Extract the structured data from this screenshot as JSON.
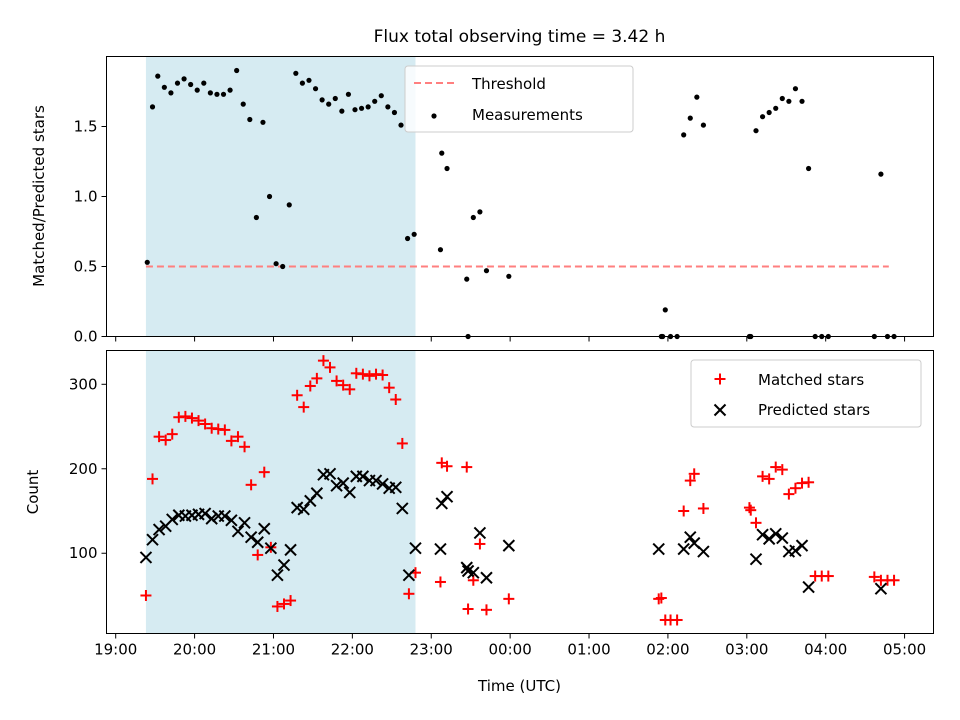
{
  "figure": {
    "title": "Flux total observing time = 3.42 h"
  },
  "colors": {
    "highlight": "#add8e6",
    "threshold": "#ff7f7f",
    "measurements": "#000000",
    "matched": "#ff0000",
    "predicted": "#000000"
  },
  "chart_data": [
    {
      "type": "scatter",
      "title": "Flux total observing time = 3.42 h",
      "xlabel": "",
      "ylabel": "Matched/Predicted stars",
      "x_ticks": [
        "19:00",
        "20:00",
        "21:00",
        "22:00",
        "23:00",
        "00:00",
        "01:00",
        "02:00",
        "03:00",
        "04:00",
        "05:00"
      ],
      "x_tick_labels_visible": false,
      "xlim": [
        "18:53",
        "05:22"
      ],
      "ylim": [
        0,
        2.0
      ],
      "y_ticks": [
        0.0,
        0.5,
        1.0,
        1.5
      ],
      "y_tick_labels": [
        "0.0",
        "0.5",
        "1.0",
        "1.5"
      ],
      "highlight_span": [
        "19:23",
        "22:48"
      ],
      "legend_position": "top-center",
      "legend": [
        "Threshold",
        "Measurements"
      ],
      "threshold": {
        "name": "Threshold",
        "y": 0.5,
        "x_range": [
          "19:23",
          "04:48"
        ],
        "style": "dashed"
      },
      "series": [
        {
          "name": "Measurements",
          "marker": "dot",
          "points": [
            [
              "19:24",
              0.53
            ],
            [
              "19:28",
              1.64
            ],
            [
              "19:32",
              1.86
            ],
            [
              "19:37",
              1.78
            ],
            [
              "19:42",
              1.74
            ],
            [
              "19:47",
              1.81
            ],
            [
              "19:52",
              1.84
            ],
            [
              "19:57",
              1.8
            ],
            [
              "20:02",
              1.76
            ],
            [
              "20:07",
              1.81
            ],
            [
              "20:12",
              1.74
            ],
            [
              "20:17",
              1.73
            ],
            [
              "20:22",
              1.73
            ],
            [
              "20:27",
              1.76
            ],
            [
              "20:32",
              1.9
            ],
            [
              "20:37",
              1.66
            ],
            [
              "20:42",
              1.55
            ],
            [
              "20:47",
              0.85
            ],
            [
              "20:52",
              1.53
            ],
            [
              "20:57",
              1.0
            ],
            [
              "21:02",
              0.52
            ],
            [
              "21:07",
              0.5
            ],
            [
              "21:12",
              0.94
            ],
            [
              "21:17",
              1.88
            ],
            [
              "21:22",
              1.81
            ],
            [
              "21:27",
              1.83
            ],
            [
              "21:32",
              1.77
            ],
            [
              "21:37",
              1.69
            ],
            [
              "21:42",
              1.66
            ],
            [
              "21:47",
              1.7
            ],
            [
              "21:52",
              1.61
            ],
            [
              "21:57",
              1.73
            ],
            [
              "22:02",
              1.62
            ],
            [
              "22:07",
              1.63
            ],
            [
              "22:12",
              1.64
            ],
            [
              "22:17",
              1.68
            ],
            [
              "22:22",
              1.72
            ],
            [
              "22:27",
              1.64
            ],
            [
              "22:32",
              1.6
            ],
            [
              "22:37",
              1.51
            ],
            [
              "22:42",
              0.7
            ],
            [
              "22:47",
              0.73
            ],
            [
              "23:07",
              0.62
            ],
            [
              "23:08",
              1.31
            ],
            [
              "23:12",
              1.2
            ],
            [
              "23:27",
              0.41
            ],
            [
              "23:28",
              0.0
            ],
            [
              "23:32",
              0.85
            ],
            [
              "23:37",
              0.89
            ],
            [
              "23:42",
              0.47
            ],
            [
              "23:59",
              0.43
            ],
            [
              "01:55",
              0.0
            ],
            [
              "01:56",
              0.0
            ],
            [
              "01:58",
              0.19
            ],
            [
              "02:02",
              0.0
            ],
            [
              "02:07",
              0.0
            ],
            [
              "02:12",
              1.44
            ],
            [
              "02:17",
              1.56
            ],
            [
              "02:22",
              1.71
            ],
            [
              "02:27",
              1.51
            ],
            [
              "03:02",
              0.0
            ],
            [
              "03:03",
              0.0
            ],
            [
              "03:07",
              1.47
            ],
            [
              "03:12",
              1.57
            ],
            [
              "03:17",
              1.6
            ],
            [
              "03:22",
              1.63
            ],
            [
              "03:27",
              1.7
            ],
            [
              "03:32",
              1.68
            ],
            [
              "03:37",
              1.77
            ],
            [
              "03:42",
              1.68
            ],
            [
              "03:47",
              1.2
            ],
            [
              "03:52",
              0.0
            ],
            [
              "03:57",
              0.0
            ],
            [
              "04:02",
              0.0
            ],
            [
              "04:37",
              0.0
            ],
            [
              "04:42",
              1.16
            ],
            [
              "04:47",
              0.0
            ],
            [
              "04:52",
              0.0
            ]
          ]
        }
      ]
    },
    {
      "type": "scatter",
      "title": "",
      "xlabel": "Time (UTC)",
      "ylabel": "Count",
      "x_ticks": [
        "19:00",
        "20:00",
        "21:00",
        "22:00",
        "23:00",
        "00:00",
        "01:00",
        "02:00",
        "03:00",
        "04:00",
        "05:00"
      ],
      "x_tick_labels": [
        "19:00",
        "20:00",
        "21:00",
        "22:00",
        "23:00",
        "00:00",
        "01:00",
        "02:00",
        "03:00",
        "04:00",
        "05:00"
      ],
      "xlim": [
        "18:53",
        "05:22"
      ],
      "ylim": [
        5,
        340
      ],
      "y_ticks": [
        100,
        200,
        300
      ],
      "y_tick_labels": [
        "100",
        "200",
        "300"
      ],
      "highlight_span": [
        "19:23",
        "22:48"
      ],
      "legend_position": "top-right",
      "legend": [
        "Matched stars",
        "Predicted stars"
      ],
      "series": [
        {
          "name": "Matched stars",
          "marker": "plus",
          "points": [
            [
              "19:23",
              50
            ],
            [
              "19:28",
              188
            ],
            [
              "19:33",
              238
            ],
            [
              "19:38",
              234
            ],
            [
              "19:43",
              241
            ],
            [
              "19:48",
              261
            ],
            [
              "19:53",
              262
            ],
            [
              "19:58",
              260
            ],
            [
              "20:03",
              257
            ],
            [
              "20:08",
              253
            ],
            [
              "20:13",
              248
            ],
            [
              "20:18",
              247
            ],
            [
              "20:23",
              246
            ],
            [
              "20:28",
              233
            ],
            [
              "20:33",
              238
            ],
            [
              "20:38",
              226
            ],
            [
              "20:43",
              181
            ],
            [
              "20:48",
              98
            ],
            [
              "20:53",
              196
            ],
            [
              "20:58",
              107
            ],
            [
              "21:03",
              37
            ],
            [
              "21:08",
              40
            ],
            [
              "21:13",
              44
            ],
            [
              "21:18",
              287
            ],
            [
              "21:23",
              273
            ],
            [
              "21:28",
              298
            ],
            [
              "21:33",
              307
            ],
            [
              "21:38",
              328
            ],
            [
              "21:43",
              320
            ],
            [
              "21:48",
              304
            ],
            [
              "21:53",
              299
            ],
            [
              "21:58",
              294
            ],
            [
              "22:03",
              313
            ],
            [
              "22:08",
              312
            ],
            [
              "22:13",
              310
            ],
            [
              "22:18",
              312
            ],
            [
              "22:23",
              311
            ],
            [
              "22:28",
              296
            ],
            [
              "22:33",
              282
            ],
            [
              "22:38",
              230
            ],
            [
              "22:43",
              52
            ],
            [
              "22:48",
              77
            ],
            [
              "23:07",
              66
            ],
            [
              "23:08",
              207
            ],
            [
              "23:12",
              203
            ],
            [
              "23:27",
              202
            ],
            [
              "23:28",
              34
            ],
            [
              "23:32",
              68
            ],
            [
              "23:37",
              111
            ],
            [
              "23:42",
              33
            ],
            [
              "23:59",
              46
            ],
            [
              "01:53",
              46
            ],
            [
              "01:55",
              47
            ],
            [
              "01:58",
              21
            ],
            [
              "02:02",
              21
            ],
            [
              "02:07",
              21
            ],
            [
              "02:12",
              150
            ],
            [
              "02:17",
              186
            ],
            [
              "02:20",
              194
            ],
            [
              "02:27",
              153
            ],
            [
              "03:02",
              154
            ],
            [
              "03:03",
              151
            ],
            [
              "03:07",
              136
            ],
            [
              "03:12",
              191
            ],
            [
              "03:17",
              188
            ],
            [
              "03:22",
              202
            ],
            [
              "03:27",
              199
            ],
            [
              "03:32",
              170
            ],
            [
              "03:37",
              177
            ],
            [
              "03:42",
              183
            ],
            [
              "03:47",
              184
            ],
            [
              "03:52",
              73
            ],
            [
              "03:57",
              73
            ],
            [
              "04:02",
              73
            ],
            [
              "04:37",
              72
            ],
            [
              "04:42",
              68
            ],
            [
              "04:47",
              68
            ],
            [
              "04:52",
              68
            ]
          ]
        },
        {
          "name": "Predicted stars",
          "marker": "x",
          "points": [
            [
              "19:23",
              95
            ],
            [
              "19:28",
              116
            ],
            [
              "19:33",
              128
            ],
            [
              "19:38",
              132
            ],
            [
              "19:43",
              140
            ],
            [
              "19:48",
              145
            ],
            [
              "19:53",
              144
            ],
            [
              "19:58",
              145
            ],
            [
              "20:03",
              146
            ],
            [
              "20:08",
              147
            ],
            [
              "20:13",
              141
            ],
            [
              "20:18",
              144
            ],
            [
              "20:23",
              144
            ],
            [
              "20:28",
              139
            ],
            [
              "20:33",
              126
            ],
            [
              "20:38",
              136
            ],
            [
              "20:43",
              119
            ],
            [
              "20:48",
              113
            ],
            [
              "20:53",
              129
            ],
            [
              "20:58",
              106
            ],
            [
              "21:03",
              74
            ],
            [
              "21:08",
              86
            ],
            [
              "21:13",
              104
            ],
            [
              "21:18",
              154
            ],
            [
              "21:23",
              152
            ],
            [
              "21:28",
              162
            ],
            [
              "21:33",
              171
            ],
            [
              "21:38",
              193
            ],
            [
              "21:43",
              194
            ],
            [
              "21:48",
              180
            ],
            [
              "21:53",
              183
            ],
            [
              "21:58",
              172
            ],
            [
              "22:03",
              191
            ],
            [
              "22:08",
              191
            ],
            [
              "22:13",
              186
            ],
            [
              "22:18",
              186
            ],
            [
              "22:23",
              182
            ],
            [
              "22:28",
              177
            ],
            [
              "22:33",
              178
            ],
            [
              "22:38",
              153
            ],
            [
              "22:43",
              74
            ],
            [
              "22:48",
              106
            ],
            [
              "23:07",
              105
            ],
            [
              "23:08",
              159
            ],
            [
              "23:12",
              167
            ],
            [
              "23:27",
              83
            ],
            [
              "23:28",
              79
            ],
            [
              "23:32",
              77
            ],
            [
              "23:37",
              124
            ],
            [
              "23:42",
              71
            ],
            [
              "23:59",
              109
            ],
            [
              "01:53",
              105
            ],
            [
              "02:12",
              105
            ],
            [
              "02:17",
              119
            ],
            [
              "02:20",
              112
            ],
            [
              "02:27",
              102
            ],
            [
              "03:07",
              93
            ],
            [
              "03:12",
              122
            ],
            [
              "03:17",
              117
            ],
            [
              "03:22",
              123
            ],
            [
              "03:27",
              118
            ],
            [
              "03:32",
              102
            ],
            [
              "03:37",
              103
            ],
            [
              "03:42",
              109
            ],
            [
              "03:47",
              60
            ],
            [
              "04:42",
              58
            ]
          ]
        }
      ]
    }
  ]
}
